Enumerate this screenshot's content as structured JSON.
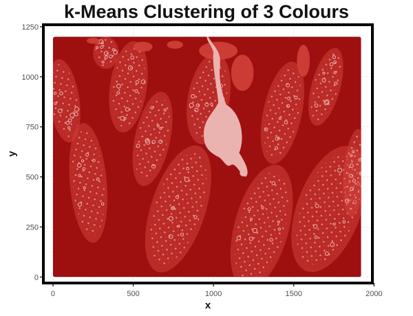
{
  "chart_data": {
    "type": "scatter",
    "title": "k-Means Clustering of 3 Colours",
    "xlabel": "x",
    "ylabel": "y",
    "xlim": [
      -60,
      1990
    ],
    "ylim": [
      -30,
      1260
    ],
    "x_ticks": [
      0,
      500,
      1000,
      1500,
      2000
    ],
    "y_ticks": [
      0,
      250,
      500,
      750,
      1000,
      1250
    ],
    "grid": true,
    "image_extent": {
      "x": [
        0,
        1920
      ],
      "y": [
        0,
        1200
      ]
    },
    "clusters": [
      {
        "color": "#9e1010",
        "role": "dark red background"
      },
      {
        "color": "#d2403a",
        "role": "medium red"
      },
      {
        "color": "#eab3b0",
        "role": "light pink highlights"
      }
    ]
  }
}
